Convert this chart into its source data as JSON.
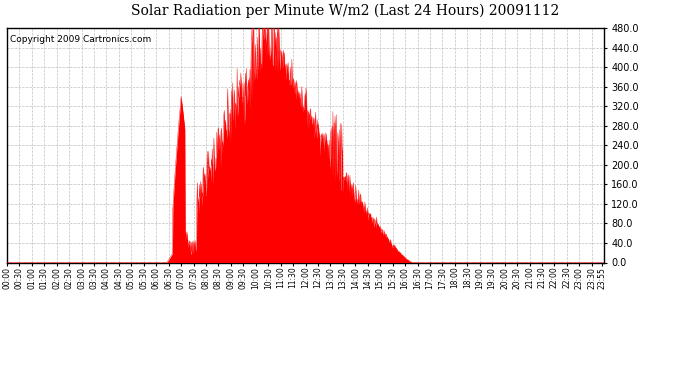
{
  "title": "Solar Radiation per Minute W/m2 (Last 24 Hours) 20091112",
  "copyright_text": "Copyright 2009 Cartronics.com",
  "fill_color": "#ff0000",
  "line_color": "#ff0000",
  "bg_color": "#ffffff",
  "grid_color": "#c0c0c0",
  "dashed_line_color": "#ff0000",
  "ylim": [
    0.0,
    480.0
  ],
  "yticks": [
    0.0,
    40.0,
    80.0,
    120.0,
    160.0,
    200.0,
    240.0,
    280.0,
    320.0,
    360.0,
    400.0,
    440.0,
    480.0
  ],
  "total_minutes": 1440,
  "sunrise_min": 385,
  "sunset_min": 978,
  "peak_min": 625,
  "peak_val": 480
}
